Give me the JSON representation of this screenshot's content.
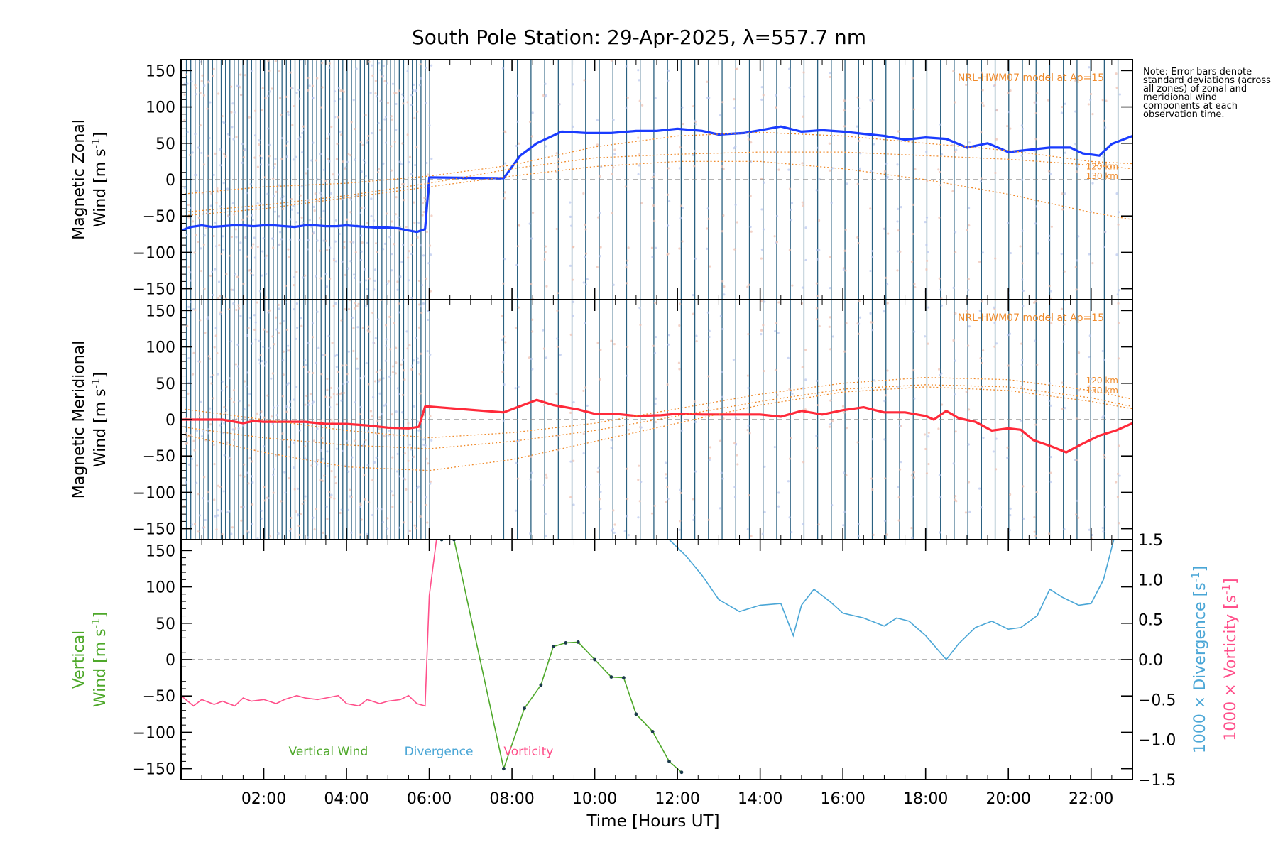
{
  "title": "South Pole Station: 29-Apr-2025, λ=557.7 nm",
  "note": "Note: Error bars denote standard deviations (across all zones) of zonal and meridional wind components at each observation time.",
  "x_axis": {
    "label": "Time [Hours UT]",
    "range_hours": [
      0,
      23
    ],
    "ticks": [
      2,
      4,
      6,
      8,
      10,
      12,
      14,
      16,
      18,
      20,
      22
    ],
    "tick_labels": [
      "02:00",
      "04:00",
      "06:00",
      "08:00",
      "10:00",
      "12:00",
      "14:00",
      "16:00",
      "18:00",
      "20:00",
      "22:00"
    ]
  },
  "colors": {
    "zonal": "#1a3cff",
    "meridional": "#ff2a3a",
    "vertical": "#4ea82a",
    "divergence": "#4aa6d6",
    "vorticity": "#ff4f8a",
    "model": "#f08a2a",
    "obs_lines": "#2a6080",
    "zero_line": "#888888"
  },
  "chart_data": [
    {
      "type": "line",
      "panel": "zonal",
      "ylabel_line1": "Magnetic Zonal",
      "ylabel_line2": "Wind [m s",
      "ylabel_exp": "-1",
      "ylabel_close": "]",
      "ylim": [
        -165,
        165
      ],
      "yticks": [
        -150,
        -100,
        -50,
        0,
        50,
        100,
        150
      ],
      "model_label": "NRL-HWM07 model at Ap=15",
      "model_alt_labels": [
        "120 km",
        "130 km"
      ],
      "series": [
        {
          "name": "Magnetic Zonal Wind",
          "x": [
            0.0,
            0.25,
            0.5,
            0.75,
            1.0,
            1.25,
            1.5,
            1.75,
            2.0,
            2.25,
            2.5,
            2.75,
            3.0,
            3.25,
            3.5,
            3.75,
            4.0,
            4.25,
            4.5,
            4.75,
            5.0,
            5.25,
            5.5,
            5.7,
            5.9,
            6.0,
            7.8,
            8.2,
            8.6,
            9.2,
            9.8,
            10.4,
            11.0,
            11.5,
            12.0,
            12.6,
            13.0,
            13.6,
            14.0,
            14.5,
            15.0,
            15.5,
            16.0,
            16.5,
            17.0,
            17.5,
            18.0,
            18.5,
            19.0,
            19.5,
            20.0,
            20.5,
            21.0,
            21.5,
            21.8,
            22.2,
            22.5,
            23.0
          ],
          "y": [
            -70,
            -65,
            -63,
            -65,
            -64,
            -63,
            -63,
            -64,
            -63,
            -63,
            -64,
            -65,
            -63,
            -63,
            -64,
            -64,
            -63,
            -64,
            -65,
            -66,
            -66,
            -67,
            -70,
            -72,
            -68,
            3,
            2,
            33,
            50,
            66,
            64,
            64,
            67,
            67,
            70,
            67,
            62,
            64,
            68,
            73,
            66,
            68,
            66,
            63,
            60,
            55,
            58,
            56,
            44,
            50,
            38,
            41,
            44,
            44,
            36,
            33,
            49,
            60
          ]
        },
        {
          "name": "HWM07 120 km",
          "x": [
            0,
            2,
            4,
            6,
            8,
            10,
            12,
            14,
            16,
            18,
            20,
            22,
            23
          ],
          "y": [
            -20,
            -10,
            -5,
            5,
            20,
            45,
            60,
            65,
            60,
            50,
            40,
            25,
            22
          ]
        },
        {
          "name": "HWM07 130 km",
          "x": [
            0,
            2,
            4,
            6,
            8,
            10,
            12,
            14,
            16,
            18,
            20,
            22,
            23
          ],
          "y": [
            -45,
            -35,
            -22,
            -5,
            15,
            30,
            35,
            38,
            38,
            33,
            28,
            20,
            15
          ]
        },
        {
          "name": "HWM07 lower",
          "x": [
            0,
            2,
            4,
            6,
            8,
            10,
            12,
            14,
            16,
            18,
            20,
            22,
            23
          ],
          "y": [
            -50,
            -40,
            -25,
            -10,
            5,
            18,
            25,
            25,
            15,
            0,
            -20,
            -45,
            -55
          ]
        }
      ]
    },
    {
      "type": "line",
      "panel": "meridional",
      "ylabel_line1": "Magnetic Meridional",
      "ylabel_line2": "Wind [m s",
      "ylabel_exp": "-1",
      "ylabel_close": "]",
      "ylim": [
        -165,
        165
      ],
      "yticks": [
        -150,
        -100,
        -50,
        0,
        50,
        100,
        150
      ],
      "model_label": "NRL-HWM07 model at Ap=15",
      "model_alt_labels": [
        "120 km",
        "130 km"
      ],
      "series": [
        {
          "name": "Magnetic Meridional Wind",
          "x": [
            0.0,
            0.5,
            1.0,
            1.5,
            1.75,
            2.0,
            2.5,
            3.0,
            3.5,
            4.0,
            4.5,
            5.0,
            5.5,
            5.75,
            5.9,
            6.0,
            7.8,
            8.6,
            9.0,
            9.6,
            10.0,
            10.5,
            11.0,
            11.6,
            12.0,
            12.6,
            13.2,
            14.0,
            14.5,
            15.0,
            15.5,
            16.0,
            16.5,
            17.0,
            17.5,
            18.0,
            18.2,
            18.5,
            18.8,
            19.2,
            19.6,
            20.0,
            20.3,
            20.6,
            21.0,
            21.4,
            21.8,
            22.2,
            22.6,
            23.0
          ],
          "y": [
            0,
            0,
            0,
            -5,
            -2,
            -3,
            -3,
            -3,
            -6,
            -6,
            -8,
            -11,
            -12,
            -10,
            18,
            18,
            10,
            27,
            20,
            14,
            8,
            8,
            5,
            6,
            8,
            7,
            7,
            7,
            4,
            12,
            7,
            13,
            17,
            10,
            10,
            5,
            0,
            12,
            2,
            -3,
            -15,
            -12,
            -14,
            -28,
            -36,
            -45,
            -33,
            -22,
            -15,
            -5
          ]
        },
        {
          "name": "HWM07 120 km",
          "x": [
            0,
            2,
            4,
            6,
            8,
            10,
            12,
            14,
            16,
            18,
            20,
            22,
            23
          ],
          "y": [
            15,
            0,
            -15,
            -25,
            -18,
            -5,
            15,
            35,
            50,
            58,
            55,
            40,
            28
          ]
        },
        {
          "name": "HWM07 130 km",
          "x": [
            0,
            2,
            4,
            6,
            8,
            10,
            12,
            14,
            16,
            18,
            20,
            22,
            23
          ],
          "y": [
            -10,
            -25,
            -35,
            -40,
            -30,
            -15,
            5,
            25,
            42,
            48,
            45,
            30,
            18
          ]
        },
        {
          "name": "HWM07 lower",
          "x": [
            0,
            2,
            4,
            6,
            8,
            10,
            12,
            14,
            16,
            18,
            20,
            22,
            23
          ],
          "y": [
            -20,
            -45,
            -65,
            -70,
            -55,
            -30,
            -5,
            20,
            38,
            45,
            40,
            25,
            15
          ]
        }
      ]
    },
    {
      "type": "line",
      "panel": "vertical",
      "ylabel_line1": "Vertical",
      "ylabel_line2": "Wind [m s",
      "ylabel_exp": "-1",
      "ylabel_close": "]",
      "ylim": [
        -165,
        165
      ],
      "yticks": [
        -150,
        -100,
        -50,
        0,
        50,
        100,
        150
      ],
      "y2label_div": "1000 × Divergence [s",
      "y2label_vor": "1000 × Vorticity [s",
      "y2label_exp": "-1",
      "y2label_close": "]",
      "y2lim": [
        -1.5,
        1.5
      ],
      "y2ticks": [
        -1.5,
        -1.0,
        -0.5,
        0.0,
        0.5,
        1.0,
        1.5
      ],
      "y2tick_labels": [
        "−1.5",
        "−1.0",
        "−0.5",
        "0.0",
        "0.5",
        "1.0",
        "1.5"
      ],
      "legend": [
        "Vertical Wind",
        "Divergence",
        "Vorticity"
      ],
      "series": [
        {
          "name": "Vertical Wind",
          "axis": "left",
          "x": [
            6.3,
            6.6,
            7.8,
            8.3,
            8.7,
            9.0,
            9.3,
            9.6,
            10.0,
            10.4,
            10.7,
            11.0,
            11.4,
            11.8,
            12.1
          ],
          "y": [
            165,
            165,
            -150,
            -67,
            -35,
            18,
            23,
            24,
            0,
            -24,
            -25,
            -75,
            -99,
            -140,
            -155
          ]
        },
        {
          "name": "Divergence",
          "axis": "right",
          "x": [
            11.8,
            12.2,
            12.6,
            13.0,
            13.5,
            14.0,
            14.5,
            14.8,
            15.0,
            15.3,
            15.7,
            16.0,
            16.5,
            17.0,
            17.3,
            17.6,
            18.0,
            18.5,
            18.8,
            19.2,
            19.6,
            20.0,
            20.3,
            20.7,
            21.0,
            21.3,
            21.7,
            22.0,
            22.3,
            22.6
          ],
          "y": [
            1.5,
            1.3,
            1.05,
            0.75,
            0.6,
            0.68,
            0.7,
            0.3,
            0.68,
            0.88,
            0.72,
            0.58,
            0.52,
            0.42,
            0.52,
            0.48,
            0.3,
            0.0,
            0.2,
            0.4,
            0.48,
            0.38,
            0.4,
            0.55,
            0.88,
            0.78,
            0.68,
            0.7,
            1.0,
            1.6
          ]
        },
        {
          "name": "Vorticity",
          "axis": "right",
          "x": [
            0.0,
            0.3,
            0.5,
            0.8,
            1.0,
            1.3,
            1.5,
            1.7,
            2.0,
            2.3,
            2.5,
            2.8,
            3.0,
            3.3,
            3.5,
            3.8,
            4.0,
            4.3,
            4.5,
            4.8,
            5.0,
            5.3,
            5.5,
            5.7,
            5.9,
            6.0,
            6.2
          ],
          "y": [
            -0.45,
            -0.58,
            -0.5,
            -0.56,
            -0.52,
            -0.58,
            -0.48,
            -0.52,
            -0.5,
            -0.55,
            -0.5,
            -0.45,
            -0.48,
            -0.5,
            -0.48,
            -0.45,
            -0.55,
            -0.58,
            -0.5,
            -0.55,
            -0.52,
            -0.5,
            -0.45,
            -0.55,
            -0.58,
            0.8,
            1.6
          ]
        }
      ]
    }
  ]
}
